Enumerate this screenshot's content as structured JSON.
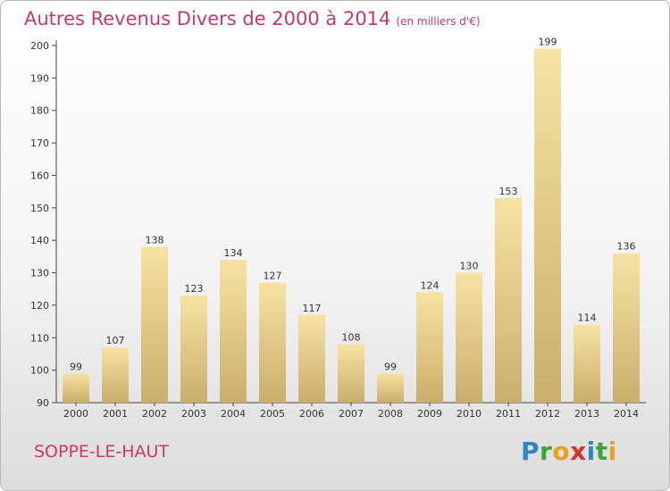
{
  "title": "Autres Revenus Divers de 2000 à 2014",
  "subtitle": "(en milliers d'€)",
  "commune": "SOPPE-LE-HAUT",
  "logo": {
    "text": "Proxiti",
    "letters": [
      {
        "ch": "P",
        "color": "#2e86c8"
      },
      {
        "ch": "r",
        "color": "#3aa53a"
      },
      {
        "ch": "o",
        "color": "#e8a21a"
      },
      {
        "ch": "x",
        "color": "#d8322e"
      },
      {
        "ch": "i",
        "color": "#2e86c8"
      },
      {
        "ch": "t",
        "color": "#3aa53a"
      },
      {
        "ch": "i",
        "color": "#e8a21a"
      }
    ]
  },
  "colors": {
    "accent": "#c8386a",
    "bar_light": "#f6e3a4",
    "bar_dark": "#c9ae6c"
  },
  "chart_data": {
    "type": "bar",
    "title": "Autres Revenus Divers de 2000 à 2014",
    "subtitle": "(en milliers d'€)",
    "categories": [
      "2000",
      "2001",
      "2002",
      "2003",
      "2004",
      "2005",
      "2006",
      "2007",
      "2008",
      "2009",
      "2010",
      "2011",
      "2012",
      "2013",
      "2014"
    ],
    "values": [
      99,
      107,
      138,
      123,
      134,
      127,
      117,
      108,
      99,
      124,
      130,
      153,
      199,
      114,
      136
    ],
    "ylim": [
      90,
      200
    ],
    "yticks": [
      90,
      100,
      110,
      120,
      130,
      140,
      150,
      160,
      170,
      180,
      190,
      200
    ],
    "grid": false,
    "data_labels": true
  }
}
